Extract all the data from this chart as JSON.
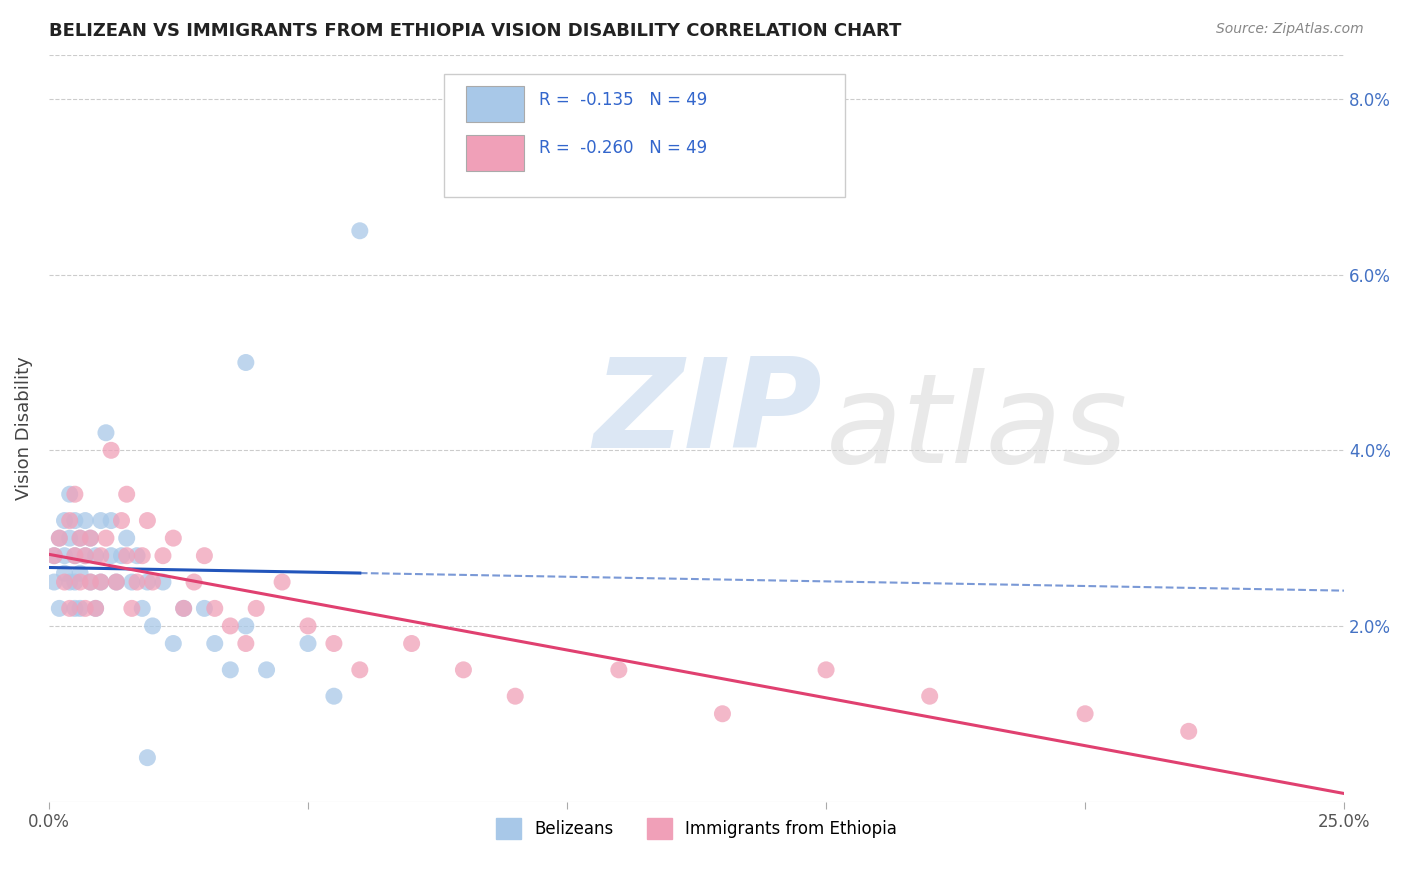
{
  "title": "BELIZEAN VS IMMIGRANTS FROM ETHIOPIA VISION DISABILITY CORRELATION CHART",
  "source": "Source: ZipAtlas.com",
  "ylabel": "Vision Disability",
  "xlim": [
    0.0,
    0.25
  ],
  "ylim": [
    0.0,
    0.085
  ],
  "xtick_positions": [
    0.0,
    0.05,
    0.1,
    0.15,
    0.2,
    0.25
  ],
  "xticklabels": [
    "0.0%",
    "",
    "",
    "",
    "",
    "25.0%"
  ],
  "ytick_positions": [
    0.0,
    0.02,
    0.04,
    0.06,
    0.08
  ],
  "yticklabels_right": [
    "",
    "2.0%",
    "4.0%",
    "6.0%",
    "8.0%"
  ],
  "belizean_color": "#a8c8e8",
  "ethiopia_color": "#f0a0b8",
  "belizean_line_color": "#2255bb",
  "ethiopia_line_color": "#e04070",
  "belizean_label": "Belizeans",
  "ethiopia_label": "Immigrants from Ethiopia",
  "belizean_x": [
    0.001,
    0.001,
    0.002,
    0.002,
    0.003,
    0.003,
    0.003,
    0.004,
    0.004,
    0.004,
    0.005,
    0.005,
    0.005,
    0.005,
    0.006,
    0.006,
    0.006,
    0.007,
    0.007,
    0.008,
    0.008,
    0.009,
    0.009,
    0.01,
    0.01,
    0.011,
    0.012,
    0.012,
    0.013,
    0.014,
    0.015,
    0.016,
    0.017,
    0.018,
    0.019,
    0.02,
    0.022,
    0.024,
    0.026,
    0.03,
    0.032,
    0.035,
    0.038,
    0.042,
    0.05,
    0.055,
    0.06,
    0.038,
    0.019
  ],
  "belizean_y": [
    0.028,
    0.025,
    0.03,
    0.022,
    0.032,
    0.026,
    0.028,
    0.03,
    0.025,
    0.035,
    0.022,
    0.028,
    0.032,
    0.025,
    0.03,
    0.026,
    0.022,
    0.028,
    0.032,
    0.025,
    0.03,
    0.028,
    0.022,
    0.032,
    0.025,
    0.042,
    0.028,
    0.032,
    0.025,
    0.028,
    0.03,
    0.025,
    0.028,
    0.022,
    0.025,
    0.02,
    0.025,
    0.018,
    0.022,
    0.022,
    0.018,
    0.015,
    0.02,
    0.015,
    0.018,
    0.012,
    0.065,
    0.05,
    0.005
  ],
  "ethiopia_x": [
    0.001,
    0.002,
    0.003,
    0.004,
    0.004,
    0.005,
    0.005,
    0.006,
    0.006,
    0.007,
    0.007,
    0.008,
    0.008,
    0.009,
    0.01,
    0.01,
    0.011,
    0.012,
    0.013,
    0.014,
    0.015,
    0.015,
    0.016,
    0.017,
    0.018,
    0.019,
    0.02,
    0.022,
    0.024,
    0.026,
    0.028,
    0.03,
    0.032,
    0.035,
    0.038,
    0.04,
    0.045,
    0.05,
    0.055,
    0.06,
    0.07,
    0.08,
    0.09,
    0.11,
    0.13,
    0.15,
    0.17,
    0.2,
    0.22
  ],
  "ethiopia_y": [
    0.028,
    0.03,
    0.025,
    0.032,
    0.022,
    0.028,
    0.035,
    0.025,
    0.03,
    0.022,
    0.028,
    0.03,
    0.025,
    0.022,
    0.028,
    0.025,
    0.03,
    0.04,
    0.025,
    0.032,
    0.028,
    0.035,
    0.022,
    0.025,
    0.028,
    0.032,
    0.025,
    0.028,
    0.03,
    0.022,
    0.025,
    0.028,
    0.022,
    0.02,
    0.018,
    0.022,
    0.025,
    0.02,
    0.018,
    0.015,
    0.018,
    0.015,
    0.012,
    0.015,
    0.01,
    0.015,
    0.012,
    0.01,
    0.008
  ]
}
